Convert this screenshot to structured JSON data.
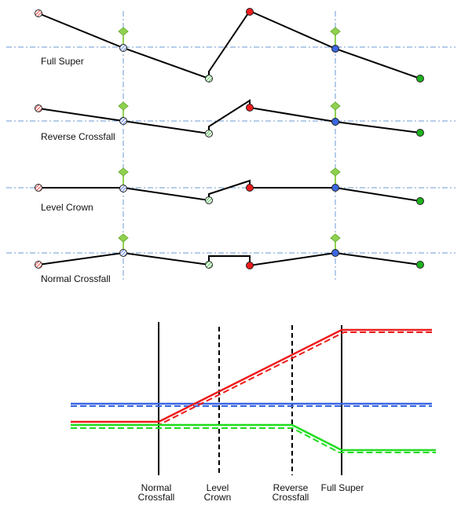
{
  "cross_sections": [
    {
      "label": "Full Super"
    },
    {
      "label": "Reverse Crossfall"
    },
    {
      "label": "Level Crown"
    },
    {
      "label": "Normal Crossfall"
    }
  ],
  "transition_labels": [
    {
      "line1": "Normal",
      "line2": "Crossfall"
    },
    {
      "line1": "Level",
      "line2": "Crown"
    },
    {
      "line1": "Reverse",
      "line2": "Crossfall"
    },
    {
      "line1": "Full Super",
      "line2": ""
    }
  ],
  "colors": {
    "red": "#ee1c1c",
    "blue": "#3b67e0",
    "green": "#1fdd1f",
    "pivot_green": "#8fd14f",
    "guide": "#6b9bd1",
    "black": "#000000"
  },
  "icons": [
    "hatched-red-point-icon",
    "hatched-blue-point-icon",
    "hatched-green-point-icon",
    "green-pivot-icon",
    "red-point-icon",
    "blue-point-icon",
    "green-point-icon"
  ]
}
